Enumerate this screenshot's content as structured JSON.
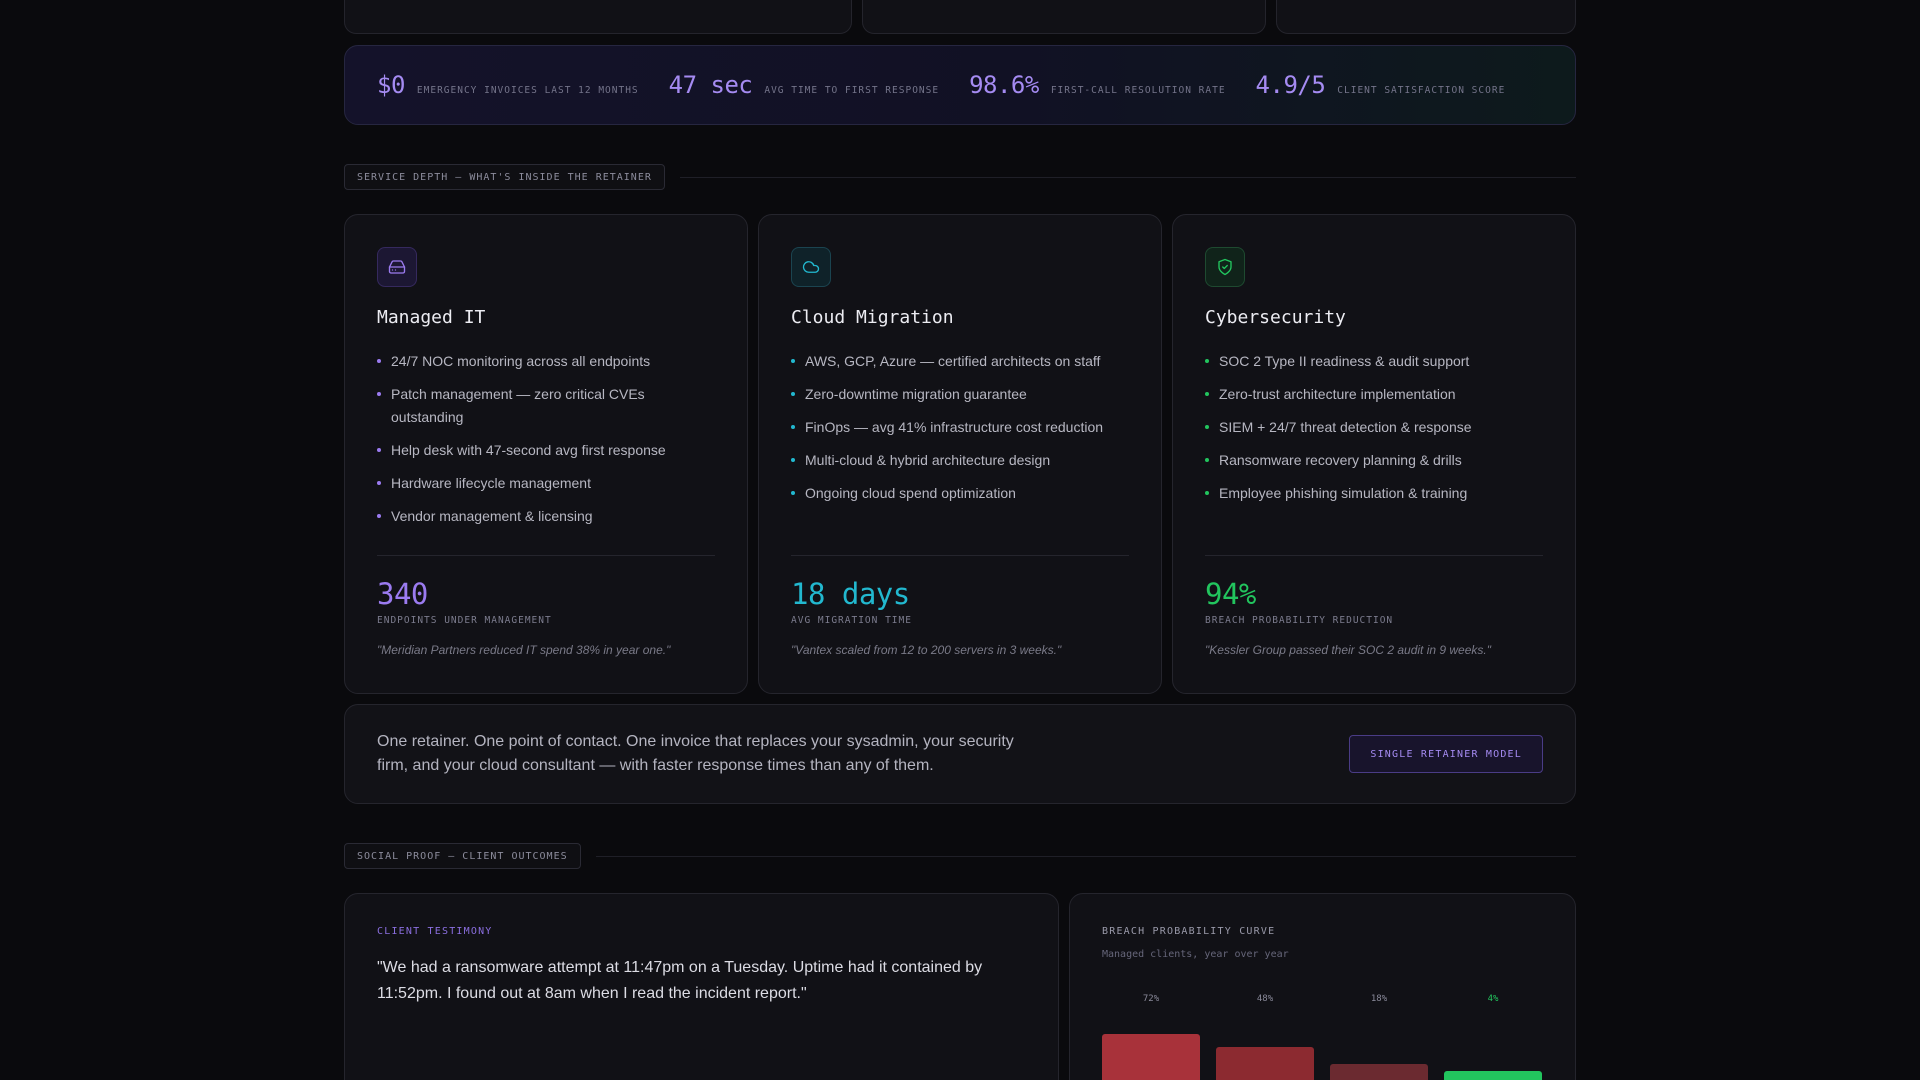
{
  "stats": [
    {
      "value": "$0",
      "label": "EMERGENCY INVOICES LAST 12 MONTHS"
    },
    {
      "value": "47 sec",
      "label": "AVG TIME TO FIRST RESPONSE"
    },
    {
      "value": "98.6%",
      "label": "FIRST-CALL RESOLUTION RATE"
    },
    {
      "value": "4.9/5",
      "label": "CLIENT SATISFACTION SCORE"
    }
  ],
  "service_section": {
    "label": "SERVICE DEPTH — WHAT'S INSIDE THE RETAINER"
  },
  "services": [
    {
      "icon": "hard-drive-icon",
      "accent": "#9b7bf0",
      "title": "Managed IT",
      "items": [
        "24/7 NOC monitoring across all endpoints",
        "Patch management — zero critical CVEs outstanding",
        "Help desk with 47-second avg first response",
        "Hardware lifecycle management",
        "Vendor management & licensing"
      ],
      "metric": "340",
      "metric_label": "ENDPOINTS UNDER MANAGEMENT",
      "quote": "\"Meridian Partners reduced IT spend 38% in year one.\""
    },
    {
      "icon": "cloud-icon",
      "accent": "#22b8cf",
      "title": "Cloud Migration",
      "items": [
        "AWS, GCP, Azure — certified architects on staff",
        "Zero-downtime migration guarantee",
        "FinOps — avg 41% infrastructure cost reduction",
        "Multi-cloud & hybrid architecture design",
        "Ongoing cloud spend optimization"
      ],
      "metric": "18 days",
      "metric_label": "AVG MIGRATION TIME",
      "quote": "\"Vantex scaled from 12 to 200 servers in 3 weeks.\""
    },
    {
      "icon": "shield-check-icon",
      "accent": "#22c55e",
      "title": "Cybersecurity",
      "items": [
        "SOC 2 Type II readiness & audit support",
        "Zero-trust architecture implementation",
        "SIEM + 24/7 threat detection & response",
        "Ransomware recovery planning & drills",
        "Employee phishing simulation & training"
      ],
      "metric": "94%",
      "metric_label": "BREACH PROBABILITY REDUCTION",
      "quote": "\"Kessler Group passed their SOC 2 audit in 9 weeks.\""
    }
  ],
  "retainer": {
    "text": "One retainer. One point of contact. One invoice that replaces your sysadmin, your security firm, and your cloud consultant — with faster response times than any of them.",
    "button": "SINGLE RETAINER MODEL"
  },
  "social_section": {
    "label": "SOCIAL PROOF — CLIENT OUTCOMES"
  },
  "testimony": {
    "eyebrow": "CLIENT TESTIMONY",
    "quote": "\"We had a ransomware attempt at 11:47pm on a Tuesday. Uptime had it contained by 11:52pm. I found out at 8am when I read the incident report.\""
  },
  "breach_chart": {
    "title": "BREACH PROBABILITY CURVE",
    "subtitle": "Managed clients, year over year",
    "chart_data": {
      "type": "bar",
      "categories": [
        "72%",
        "48%",
        "18%",
        "4%"
      ],
      "values": [
        72,
        48,
        18,
        4
      ],
      "colors": [
        "#a8323a",
        "#8c2a30",
        "#6b2a30",
        "#22c55e"
      ]
    }
  }
}
